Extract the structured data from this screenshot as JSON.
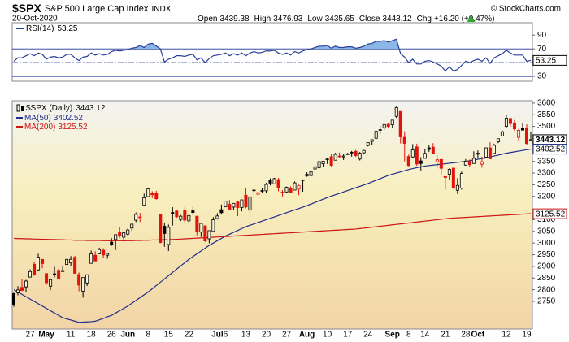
{
  "header": {
    "title": "$SPX",
    "subtitle": "S&P 500 Large Cap Index",
    "exchange": "INDX",
    "copyright": "© StockCharts.com",
    "date": "20-Oct-2020",
    "quote_labels": [
      "Open",
      "High",
      "Low",
      "Close",
      "Chg"
    ],
    "change": "+16.20 (+0.47%)"
  },
  "chart_data": [
    {
      "type": "line",
      "series": [
        {
          "name": "RSI(14)",
          "color": "#2b3f9a",
          "values": [
            52,
            57,
            57,
            60,
            63,
            60,
            64,
            62,
            55,
            58,
            59,
            57,
            58,
            62,
            62,
            57,
            53,
            58,
            59,
            64,
            61,
            63,
            61,
            62,
            66,
            68,
            67,
            68,
            69,
            71,
            72,
            75,
            72,
            77,
            78,
            74,
            70,
            51,
            55,
            57,
            60,
            60,
            59,
            61,
            62,
            54,
            57,
            50,
            56,
            60,
            61,
            62,
            64,
            60,
            63,
            61,
            64,
            60,
            64,
            66,
            64,
            65,
            67,
            67,
            68,
            64,
            62,
            64,
            61,
            66,
            64,
            67,
            69,
            70,
            72,
            74,
            74,
            75,
            71,
            74,
            72,
            72,
            73,
            73,
            71,
            72,
            74,
            77,
            78,
            81,
            81,
            82,
            80,
            82,
            84,
            63,
            58,
            50,
            55,
            48,
            48,
            52,
            53,
            51,
            48,
            45,
            38,
            44,
            38,
            40,
            46,
            52,
            50,
            53,
            55,
            52,
            57,
            49,
            57,
            60,
            63,
            68,
            64,
            61,
            61,
            61,
            52,
            53.25
          ]
        }
      ],
      "overbought_fill": "#8ab8e6",
      "levels": [
        {
          "value": 70,
          "style": "solid"
        },
        {
          "value": 50,
          "style": "dashdot"
        },
        {
          "value": 30,
          "style": "solid"
        }
      ],
      "ylim": [
        23,
        108
      ],
      "yticks": [
        90,
        70,
        30
      ]
    },
    {
      "type": "candlestick",
      "name": "$SPX (Daily)",
      "up_color": "#000000",
      "down_color": "#e3120b",
      "categories": [
        null,
        null,
        null,
        null,
        "27",
        null,
        null,
        null,
        "May",
        null,
        null,
        null,
        null,
        null,
        "11",
        null,
        null,
        null,
        null,
        "18",
        null,
        null,
        null,
        null,
        "26",
        null,
        null,
        null,
        "Jun",
        null,
        null,
        null,
        null,
        "8",
        null,
        null,
        null,
        null,
        "15",
        null,
        null,
        null,
        null,
        "22",
        null,
        null,
        null,
        null,
        null,
        null,
        "Jul",
        null,
        "6",
        null,
        null,
        null,
        null,
        "13",
        null,
        null,
        null,
        null,
        "20",
        null,
        null,
        null,
        null,
        "27",
        null,
        null,
        null,
        null,
        "Aug",
        null,
        null,
        null,
        null,
        "10",
        null,
        null,
        null,
        null,
        "17",
        null,
        null,
        null,
        null,
        "24",
        null,
        null,
        null,
        null,
        null,
        "Sep",
        null,
        null,
        null,
        "8",
        null,
        null,
        null,
        "14",
        null,
        null,
        null,
        null,
        "21",
        null,
        null,
        null,
        null,
        "28",
        null,
        null,
        "Oct",
        null,
        null,
        null,
        null,
        null,
        null,
        "12",
        null,
        null,
        null,
        null,
        "19",
        null
      ],
      "open": [
        2784,
        2787,
        2810,
        2812,
        2854,
        2909,
        2885,
        2930,
        2869,
        2815,
        2868,
        2883,
        2878,
        2908,
        2915,
        2939,
        2865,
        2794,
        2829,
        2913,
        2948,
        2954,
        2969,
        2948,
        3004,
        3015,
        3046,
        3025,
        3038,
        3064,
        3098,
        3111,
        3163,
        3199,
        3213,
        3213,
        3123,
        3072,
        2994,
        3131,
        3137,
        3101,
        3140,
        3095,
        3138,
        3115,
        3047,
        3074,
        3018,
        3050,
        3105,
        3143,
        3155,
        3166,
        3154,
        3176,
        3152,
        3205,
        3141,
        3226,
        3209,
        3225,
        3224,
        3268,
        3254,
        3272,
        3218,
        3219,
        3234,
        3227,
        3231,
        3270,
        3288,
        3289,
        3317,
        3323,
        3340,
        3357,
        3370,
        3355,
        3372,
        3369,
        3381,
        3388,
        3393,
        3360,
        3387,
        3418,
        3436,
        3449,
        3486,
        3494,
        3509,
        3507,
        3543,
        3564,
        3453,
        3371,
        3369,
        3412,
        3352,
        3363,
        3408,
        3411,
        3347,
        3358,
        3285,
        3295,
        3321,
        3226,
        3236,
        3334,
        3350,
        3341,
        3385,
        3338,
        3368,
        3408,
        3384,
        3434,
        3459,
        3500,
        3534,
        3515,
        3453,
        3493,
        3494,
        3439.38
      ],
      "high": [
        2785,
        2815,
        2844,
        2842,
        2887,
        2921,
        2954,
        2930,
        2869,
        2844,
        2898,
        2891,
        2901,
        2932,
        2944,
        2945,
        2874,
        2852,
        2865,
        2968,
        2965,
        2980,
        2978,
        2956,
        3021,
        3036,
        3068,
        3050,
        3063,
        3081,
        3131,
        3129,
        3212,
        3233,
        3222,
        3224,
        3123,
        3088,
        3079,
        3154,
        3141,
        3120,
        3155,
        3120,
        3155,
        3115,
        3084,
        3074,
        3054,
        3111,
        3128,
        3165,
        3182,
        3184,
        3171,
        3179,
        3187,
        3235,
        3200,
        3238,
        3220,
        3234,
        3258,
        3277,
        3279,
        3279,
        3227,
        3242,
        3243,
        3264,
        3250,
        3272,
        3303,
        3306,
        3331,
        3352,
        3352,
        3364,
        3382,
        3387,
        3388,
        3381,
        3387,
        3395,
        3399,
        3390,
        3399,
        3432,
        3444,
        3481,
        3501,
        3509,
        3514,
        3528,
        3588,
        3564,
        3479,
        3379,
        3424,
        3426,
        3368,
        3402,
        3419,
        3428,
        3376,
        3362,
        3285,
        3320,
        3323,
        3278,
        3306,
        3360,
        3358,
        3393,
        3397,
        3370,
        3409,
        3432,
        3426,
        3447,
        3482,
        3550,
        3534,
        3528,
        3489,
        3516,
        3509,
        3476.93
      ],
      "low": [
        2727,
        2776,
        2794,
        2791,
        2852,
        2860,
        2880,
        2892,
        2821,
        2798,
        2853,
        2847,
        2876,
        2906,
        2903,
        2869,
        2793,
        2766,
        2816,
        2913,
        2922,
        2953,
        2938,
        2933,
        2988,
        2970,
        3023,
        3007,
        3032,
        3052,
        3090,
        3090,
        3163,
        3196,
        3193,
        3186,
        2999,
        2984,
        2966,
        3075,
        3108,
        3094,
        3084,
        3083,
        3120,
        3033,
        3026,
        3005,
        2999,
        3048,
        3101,
        3124,
        3155,
        3142,
        3142,
        3115,
        3136,
        3149,
        3128,
        3200,
        3198,
        3213,
        3215,
        3247,
        3254,
        3222,
        3200,
        3215,
        3216,
        3227,
        3205,
        3220,
        3284,
        3287,
        3317,
        3318,
        3328,
        3339,
        3326,
        3355,
        3363,
        3356,
        3379,
        3370,
        3369,
        3354,
        3380,
        3414,
        3422,
        3445,
        3468,
        3485,
        3494,
        3494,
        3536,
        3427,
        3350,
        3329,
        3366,
        3331,
        3311,
        3363,
        3390,
        3384,
        3328,
        3293,
        3229,
        3271,
        3232,
        3210,
        3229,
        3332,
        3327,
        3340,
        3362,
        3323,
        3368,
        3361,
        3384,
        3428,
        3458,
        3492,
        3500,
        3480,
        3440,
        3483,
        3421,
        3435.65
      ],
      "close": [
        2737,
        2799,
        2797,
        2837,
        2878,
        2863,
        2939,
        2912,
        2830,
        2843,
        2868,
        2848,
        2882,
        2930,
        2930,
        2870,
        2820,
        2852,
        2864,
        2954,
        2923,
        2972,
        2949,
        2955,
        2992,
        3036,
        3030,
        3044,
        3056,
        3081,
        3123,
        3112,
        3194,
        3232,
        3207,
        3190,
        3002,
        3041,
        3067,
        3125,
        3113,
        3115,
        3098,
        3118,
        3131,
        3050,
        3084,
        3009,
        3053,
        3100,
        3116,
        3130,
        3180,
        3145,
        3170,
        3152,
        3185,
        3155,
        3198,
        3227,
        3216,
        3225,
        3251,
        3257,
        3276,
        3236,
        3216,
        3239,
        3218,
        3258,
        3246,
        3271,
        3295,
        3306,
        3327,
        3349,
        3351,
        3360,
        3333,
        3380,
        3373,
        3373,
        3382,
        3389,
        3375,
        3385,
        3397,
        3431,
        3443,
        3479,
        3485,
        3508,
        3500,
        3527,
        3581,
        3455,
        3427,
        3332,
        3399,
        3339,
        3341,
        3384,
        3401,
        3385,
        3357,
        3320,
        3281,
        3316,
        3237,
        3247,
        3298,
        3351,
        3336,
        3363,
        3381,
        3348,
        3408,
        3361,
        3419,
        3447,
        3477,
        3535,
        3512,
        3489,
        3483,
        3484,
        3426.92,
        3443.12
      ],
      "series": [
        {
          "name": "MA(50)",
          "color": "#1f2d8c",
          "values": [
            2800,
            2790,
            2780,
            2770,
            2760,
            2750,
            2740,
            2730,
            2720,
            2710,
            2700,
            2690,
            2680,
            2675,
            2670,
            2665,
            2660,
            2661,
            2662,
            2663,
            2665,
            2671,
            2677,
            2684,
            2690,
            2700,
            2710,
            2720,
            2730,
            2742,
            2754,
            2766,
            2778,
            2790,
            2804,
            2818,
            2832,
            2846,
            2860,
            2874,
            2888,
            2902,
            2916,
            2930,
            2942,
            2954,
            2966,
            2978,
            2990,
            3000,
            3010,
            3020,
            3030,
            3038,
            3046,
            3054,
            3062,
            3070,
            3076,
            3082,
            3088,
            3094,
            3100,
            3106,
            3112,
            3118,
            3124,
            3130,
            3136,
            3142,
            3148,
            3154,
            3160,
            3167,
            3174,
            3181,
            3188,
            3195,
            3201,
            3207,
            3213,
            3219,
            3225,
            3231,
            3237,
            3243,
            3249,
            3255,
            3262,
            3269,
            3276,
            3283,
            3290,
            3295,
            3300,
            3305,
            3310,
            3315,
            3319,
            3323,
            3326,
            3330,
            3332,
            3334,
            3336,
            3338,
            3340,
            3342,
            3344,
            3346,
            3348,
            3350,
            3353,
            3356,
            3359,
            3362,
            3365,
            3369,
            3373,
            3377,
            3381,
            3385,
            3388,
            3391,
            3394,
            3397,
            3400,
            3402.52
          ]
        },
        {
          "name": "MA(200)",
          "color": "#cc1414",
          "values": [
            3020,
            3019,
            3019,
            3018,
            3018,
            3017,
            3017,
            3016,
            3016,
            3015,
            3015,
            3014,
            3014,
            3013,
            3013,
            3012,
            3012,
            3012,
            3011,
            3011,
            3011,
            3011,
            3010,
            3010,
            3010,
            3010,
            3010,
            3010,
            3010,
            3010,
            3011,
            3011,
            3012,
            3012,
            3013,
            3013,
            3014,
            3014,
            3015,
            3015,
            3016,
            3017,
            3018,
            3019,
            3020,
            3021,
            3022,
            3023,
            3024,
            3025,
            3026,
            3027,
            3028,
            3029,
            3030,
            3031,
            3032,
            3033,
            3034,
            3035,
            3036,
            3037,
            3038,
            3039,
            3040,
            3041,
            3042,
            3043,
            3044,
            3045,
            3046,
            3047,
            3048,
            3049,
            3050,
            3051,
            3052,
            3053,
            3054,
            3055,
            3056,
            3057,
            3058,
            3059,
            3060,
            3062,
            3064,
            3066,
            3068,
            3070,
            3072,
            3074,
            3076,
            3078,
            3080,
            3082,
            3084,
            3086,
            3088,
            3090,
            3092,
            3094,
            3096,
            3098,
            3100,
            3102,
            3104,
            3106,
            3107,
            3108,
            3109,
            3110,
            3111,
            3112,
            3113,
            3114,
            3115,
            3116,
            3117,
            3118,
            3119,
            3120,
            3121,
            3122,
            3123,
            3124,
            3125,
            3125.52
          ]
        }
      ],
      "ylim": [
        2635,
        3610
      ],
      "yticks": [
        2750,
        2800,
        2850,
        2900,
        2950,
        3000,
        3050,
        3100,
        3200,
        3250,
        3300,
        3350,
        3500,
        3550,
        3600
      ]
    }
  ]
}
